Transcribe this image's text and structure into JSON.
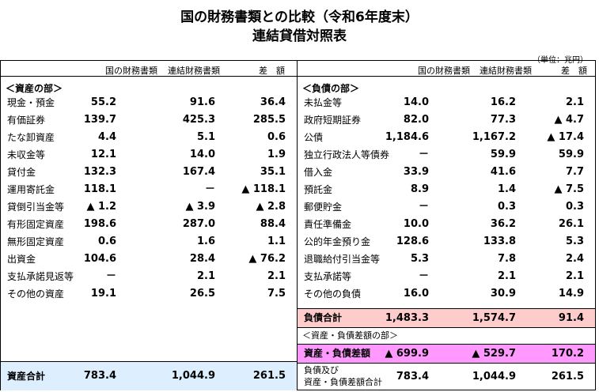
{
  "title": "国の財務書類との比較（令和6年度末）",
  "subtitle": "連結貸借対照表",
  "unit": "（単位：兆円）",
  "columns": [
    "国の財務書類",
    "連結財務書類",
    "差　額"
  ],
  "assets": {
    "section": "＜資産の部＞",
    "rows": [
      {
        "label": "現金・預金",
        "a": "55.2",
        "b": "91.6",
        "c": "36.4"
      },
      {
        "label": "有価証券",
        "a": "139.7",
        "b": "425.3",
        "c": "285.5"
      },
      {
        "label": "たな卸資産",
        "a": "4.4",
        "b": "5.1",
        "c": "0.6"
      },
      {
        "label": "未収金等",
        "a": "12.1",
        "b": "14.0",
        "c": "1.9"
      },
      {
        "label": "貸付金",
        "a": "132.3",
        "b": "167.4",
        "c": "35.1"
      },
      {
        "label": "運用寄託金",
        "a": "118.1",
        "b": "－",
        "c": "▲ 118.1"
      },
      {
        "label": "貸倒引当金等",
        "a": "▲ 1.2",
        "b": "▲ 3.9",
        "c": "▲ 2.8"
      },
      {
        "label": "有形固定資産",
        "a": "198.6",
        "b": "287.0",
        "c": "88.4"
      },
      {
        "label": "無形固定資産",
        "a": "0.6",
        "b": "1.6",
        "c": "1.1"
      },
      {
        "label": "出資金",
        "a": "104.6",
        "b": "28.4",
        "c": "▲ 76.2"
      },
      {
        "label": "支払承諾見返等",
        "a": "－",
        "b": "2.1",
        "c": "2.1"
      },
      {
        "label": "その他の資産",
        "a": "19.1",
        "b": "26.5",
        "c": "7.5"
      }
    ],
    "total": {
      "label": "資産合計",
      "a": "783.4",
      "b": "1,044.9",
      "c": "261.5"
    }
  },
  "liabilities": {
    "section": "＜負債の部＞",
    "rows": [
      {
        "label": "未払金等",
        "a": "14.0",
        "b": "16.2",
        "c": "2.1"
      },
      {
        "label": "政府短期証券",
        "a": "82.0",
        "b": "77.3",
        "c": "▲ 4.7"
      },
      {
        "label": "公債",
        "a": "1,184.6",
        "b": "1,167.2",
        "c": "▲ 17.4"
      },
      {
        "label": "独立行政法人等債券",
        "a": "－",
        "b": "59.9",
        "c": "59.9"
      },
      {
        "label": "借入金",
        "a": "33.9",
        "b": "41.6",
        "c": "7.7"
      },
      {
        "label": "預託金",
        "a": "8.9",
        "b": "1.4",
        "c": "▲ 7.5"
      },
      {
        "label": "郵便貯金",
        "a": "－",
        "b": "0.3",
        "c": "0.3"
      },
      {
        "label": "責任準備金",
        "a": "10.0",
        "b": "36.2",
        "c": "26.1"
      },
      {
        "label": "公的年金預り金",
        "a": "128.6",
        "b": "133.8",
        "c": "5.3"
      },
      {
        "label": "退職給付引当金等",
        "a": "5.3",
        "b": "7.8",
        "c": "2.4"
      },
      {
        "label": "支払承諾等",
        "a": "－",
        "b": "2.1",
        "c": "2.1"
      },
      {
        "label": "その他の負債",
        "a": "16.0",
        "b": "30.9",
        "c": "14.9"
      }
    ],
    "total": {
      "label": "負債合計",
      "a": "1,483.3",
      "b": "1,574.7",
      "c": "91.4"
    },
    "net_section": "＜資産・負債差額の部＞",
    "net": {
      "label": "資産・負債差額",
      "a": "▲ 699.9",
      "b": "▲ 529.7",
      "c": "170.2"
    },
    "grand": {
      "label1": "負債及び",
      "label2": "資産・負債差額合計",
      "a": "783.4",
      "b": "1,044.9",
      "c": "261.5"
    }
  },
  "colors": {
    "liab_total_bg": "#ffcccc",
    "net_bg": "#ff99ff",
    "asset_total_bg": "#ddeeff"
  }
}
